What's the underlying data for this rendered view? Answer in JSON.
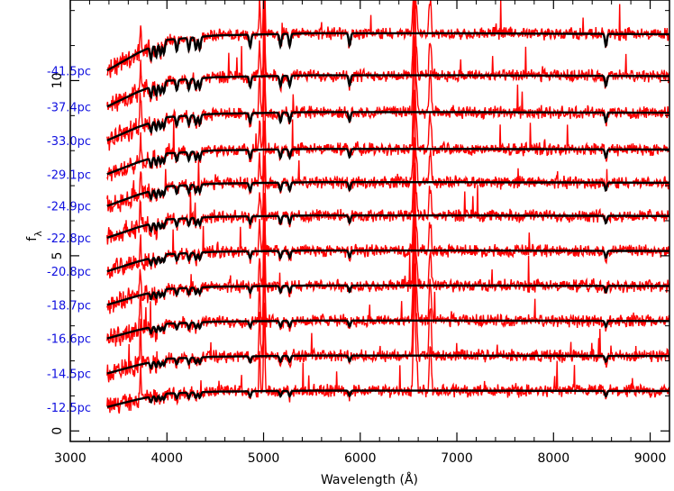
{
  "chart_data": {
    "type": "line",
    "title": "",
    "xlabel": "Wavelength (Å)",
    "ylabel": "f",
    "ylabel_subscript": "λ",
    "xlim": [
      3000,
      9200
    ],
    "ylim": [
      -0.3,
      12.3
    ],
    "x_ticks": [
      3000,
      4000,
      5000,
      6000,
      7000,
      8000,
      9000
    ],
    "y_ticks": [
      0,
      5,
      10
    ],
    "grid": false,
    "legend": "none",
    "observed_color": "#ff0000",
    "model_color": "#000000",
    "label_color": "#1010e0",
    "series": [
      {
        "label": "-12.5pc",
        "offset": 0.6,
        "level": 0.55,
        "norm_continuum": [
          [
            3380,
            0.15
          ],
          [
            3700,
            0.55
          ],
          [
            4000,
            0.85
          ],
          [
            4500,
            0.95
          ],
          [
            5500,
            1.0
          ],
          [
            7000,
            1.0
          ],
          [
            9200,
            0.98
          ]
        ],
        "halpha_peak": 3.8
      },
      {
        "label": "-14.5pc",
        "offset": 1.55,
        "level": 0.6,
        "norm_continuum": [
          [
            3380,
            0.15
          ],
          [
            3700,
            0.55
          ],
          [
            4000,
            0.85
          ],
          [
            4500,
            0.95
          ],
          [
            5500,
            1.0
          ],
          [
            7000,
            1.0
          ],
          [
            9200,
            0.98
          ]
        ],
        "halpha_peak": 4.2
      },
      {
        "label": "-16.6pc",
        "offset": 2.55,
        "level": 0.6,
        "norm_continuum": [
          [
            3380,
            0.15
          ],
          [
            3700,
            0.55
          ],
          [
            4000,
            0.85
          ],
          [
            4500,
            0.95
          ],
          [
            5500,
            1.0
          ],
          [
            7000,
            1.0
          ],
          [
            9200,
            0.98
          ]
        ],
        "halpha_peak": 3.5
      },
      {
        "label": "-18.7pc",
        "offset": 3.5,
        "level": 0.65,
        "norm_continuum": [
          [
            3380,
            0.15
          ],
          [
            3700,
            0.55
          ],
          [
            4000,
            0.85
          ],
          [
            4500,
            0.95
          ],
          [
            5500,
            1.0
          ],
          [
            7000,
            1.0
          ],
          [
            9200,
            0.98
          ]
        ],
        "halpha_peak": 3.0
      },
      {
        "label": "-20.8pc",
        "offset": 4.45,
        "level": 0.7,
        "norm_continuum": [
          [
            3380,
            0.15
          ],
          [
            3700,
            0.55
          ],
          [
            4000,
            0.85
          ],
          [
            4500,
            0.95
          ],
          [
            5500,
            1.0
          ],
          [
            7000,
            1.0
          ],
          [
            9200,
            0.98
          ]
        ],
        "halpha_peak": 2.6
      },
      {
        "label": "-22.8pc",
        "offset": 5.4,
        "level": 0.75,
        "norm_continuum": [
          [
            3380,
            0.15
          ],
          [
            3700,
            0.55
          ],
          [
            4000,
            0.85
          ],
          [
            4500,
            0.95
          ],
          [
            5500,
            1.0
          ],
          [
            7000,
            1.0
          ],
          [
            9200,
            0.98
          ]
        ],
        "halpha_peak": 2.4
      },
      {
        "label": "-24.9pc",
        "offset": 6.3,
        "level": 0.8,
        "norm_continuum": [
          [
            3380,
            0.15
          ],
          [
            3700,
            0.55
          ],
          [
            4000,
            0.85
          ],
          [
            4500,
            0.95
          ],
          [
            5500,
            1.0
          ],
          [
            7000,
            1.0
          ],
          [
            9200,
            0.98
          ]
        ],
        "halpha_peak": 2.6
      },
      {
        "label": "-29.1pc",
        "offset": 7.2,
        "level": 0.85,
        "norm_continuum": [
          [
            3380,
            0.15
          ],
          [
            3700,
            0.55
          ],
          [
            4000,
            0.85
          ],
          [
            4500,
            0.95
          ],
          [
            5500,
            1.0
          ],
          [
            7000,
            1.0
          ],
          [
            9200,
            0.98
          ]
        ],
        "halpha_peak": 3.2
      },
      {
        "label": "-33.0pc",
        "offset": 8.15,
        "level": 0.95,
        "norm_continuum": [
          [
            3380,
            0.15
          ],
          [
            3700,
            0.55
          ],
          [
            4000,
            0.85
          ],
          [
            4500,
            0.95
          ],
          [
            5500,
            1.0
          ],
          [
            7000,
            1.0
          ],
          [
            9200,
            0.98
          ]
        ],
        "halpha_peak": 3.6
      },
      {
        "label": "-37.4pc",
        "offset": 9.1,
        "level": 1.05,
        "norm_continuum": [
          [
            3380,
            0.15
          ],
          [
            3700,
            0.55
          ],
          [
            4000,
            0.85
          ],
          [
            4500,
            0.95
          ],
          [
            5500,
            1.0
          ],
          [
            7000,
            1.0
          ],
          [
            9200,
            0.98
          ]
        ],
        "halpha_peak": 3.2
      },
      {
        "label": "-41.5pc",
        "offset": 10.1,
        "level": 1.25,
        "norm_continuum": [
          [
            3380,
            0.15
          ],
          [
            3700,
            0.55
          ],
          [
            4000,
            0.85
          ],
          [
            4500,
            0.95
          ],
          [
            5500,
            1.0
          ],
          [
            7000,
            1.0
          ],
          [
            9200,
            0.98
          ]
        ],
        "halpha_peak": 3.0
      }
    ],
    "absorption_features": [
      3835,
      3889,
      3934,
      3969,
      4102,
      4227,
      4300,
      4340,
      4861,
      5175,
      5270,
      5890,
      8542
    ],
    "emission_features": [
      3727,
      4959,
      5007,
      6548,
      6563,
      6584,
      6717,
      6731
    ]
  }
}
